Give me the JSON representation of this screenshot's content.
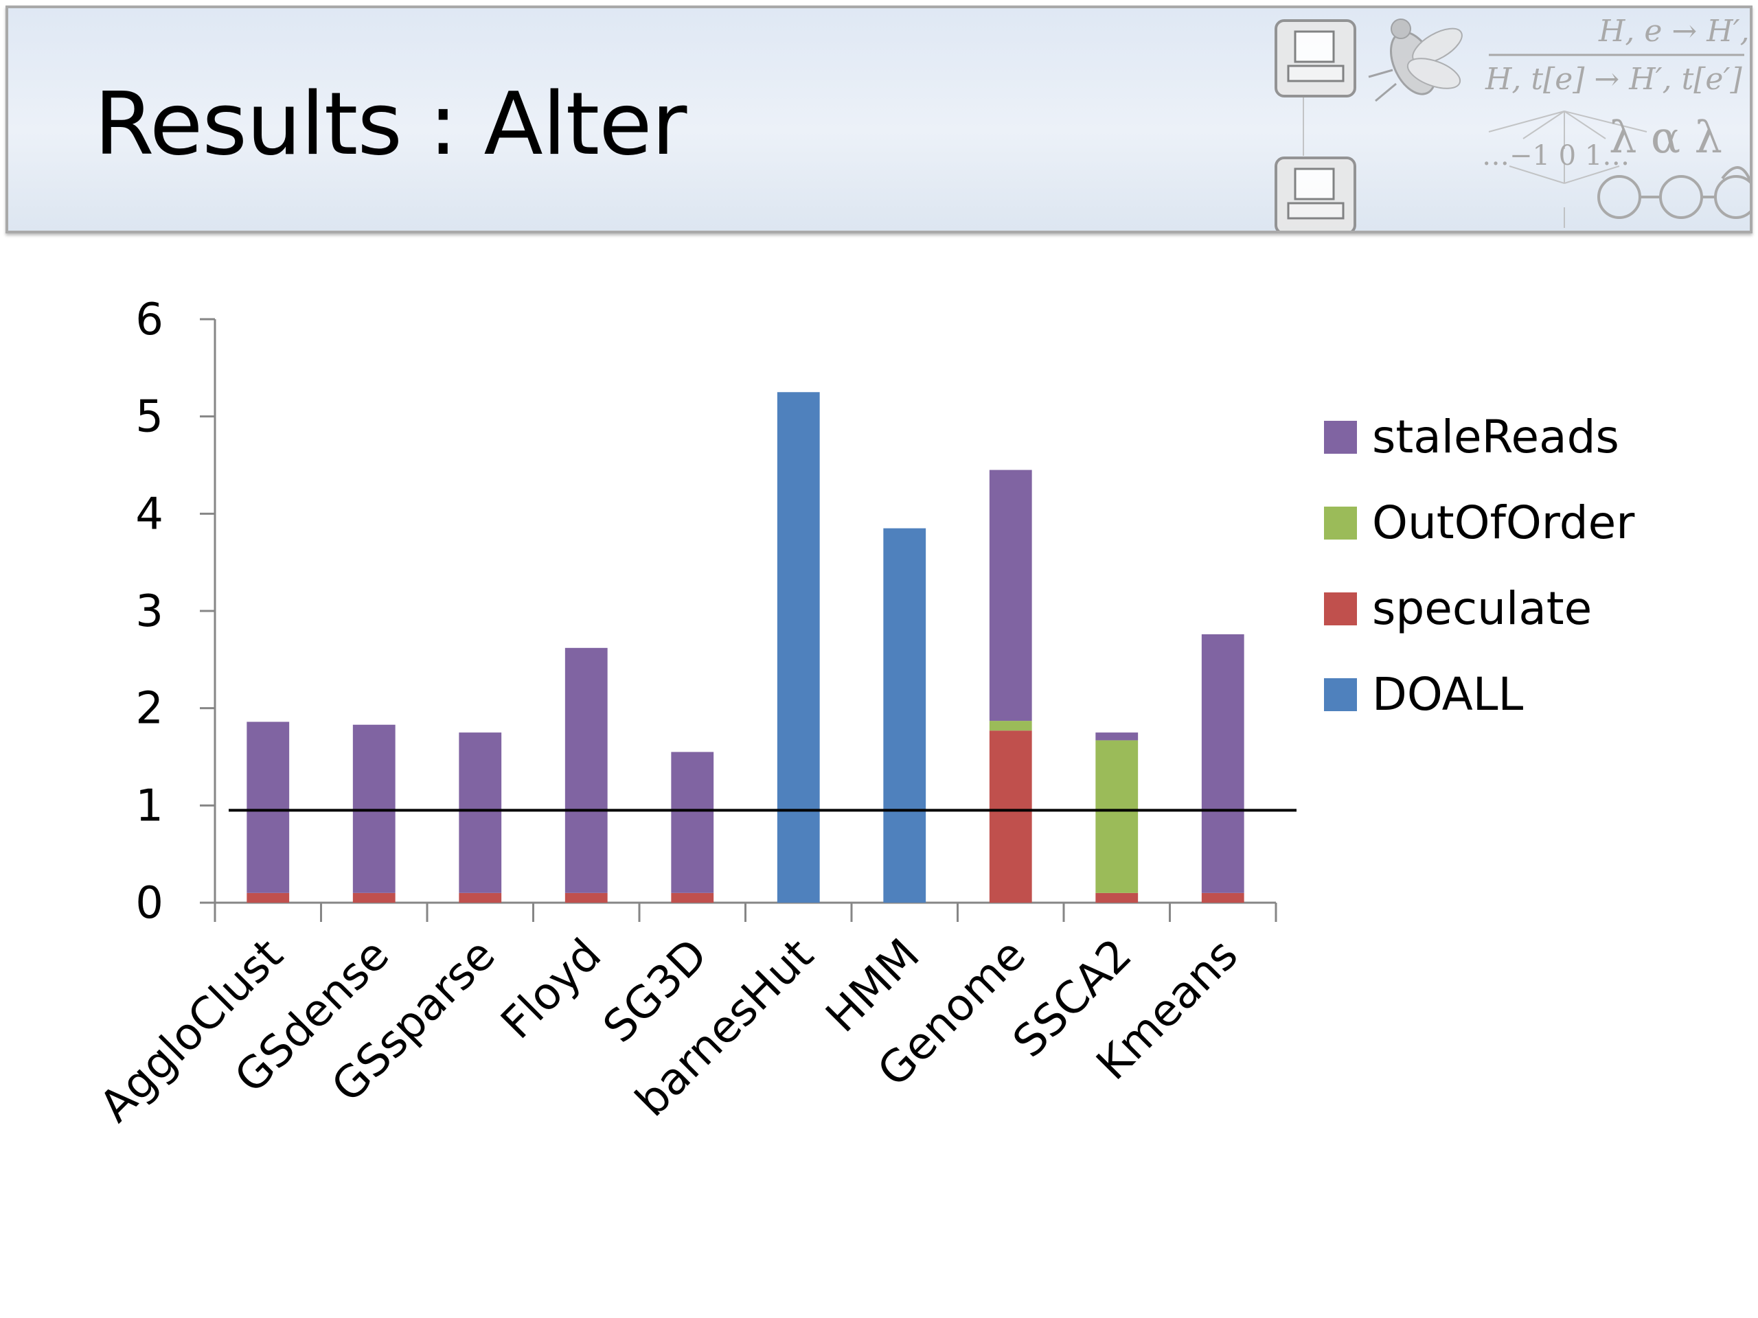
{
  "slide": {
    "title": "Results : Alter",
    "header_bg": "#e3ebf5",
    "decoration_formula": [
      "H, e → H′, e′",
      "H, t[e] → H′, t[e′]"
    ],
    "decoration_scale": "…−1  0  1…",
    "decoration_symbols": "λ α λ",
    "decoration_icons": [
      "computer-icon",
      "computer-icon",
      "fly-icon",
      "state-machine-icon"
    ]
  },
  "chart_data": {
    "type": "bar",
    "stacked": true,
    "categories": [
      "AggloClust",
      "GSdense",
      "GSsparse",
      "Floyd",
      "SG3D",
      "barnesHut",
      "HMM",
      "Genome",
      "SSCA2",
      "Kmeans"
    ],
    "series": [
      {
        "name": "DOALL",
        "color": "#4f81bd",
        "values": [
          0,
          0,
          0,
          0,
          0,
          5.25,
          3.85,
          0,
          0,
          0
        ]
      },
      {
        "name": "speculate",
        "color": "#c0504d",
        "values": [
          0.1,
          0.1,
          0.1,
          0.1,
          0.1,
          0,
          0,
          1.77,
          0.1,
          0.1
        ]
      },
      {
        "name": "OutOfOrder",
        "color": "#9bbb59",
        "values": [
          0,
          0,
          0,
          0,
          0,
          0,
          0,
          0.1,
          1.57,
          0
        ]
      },
      {
        "name": "staleReads",
        "color": "#8064a2",
        "values": [
          1.76,
          1.73,
          1.65,
          2.52,
          1.45,
          0,
          0,
          2.58,
          0.08,
          2.66
        ]
      }
    ],
    "legend_order": [
      "staleReads",
      "OutOfOrder",
      "speculate",
      "DOALL"
    ],
    "legend_position": "right",
    "ylim": [
      0,
      6
    ],
    "yticks": [
      "0",
      "1",
      "2",
      "3",
      "4",
      "5",
      "6"
    ],
    "reference_line": 0.95,
    "xlabel": "",
    "ylabel": "",
    "grid": false
  }
}
